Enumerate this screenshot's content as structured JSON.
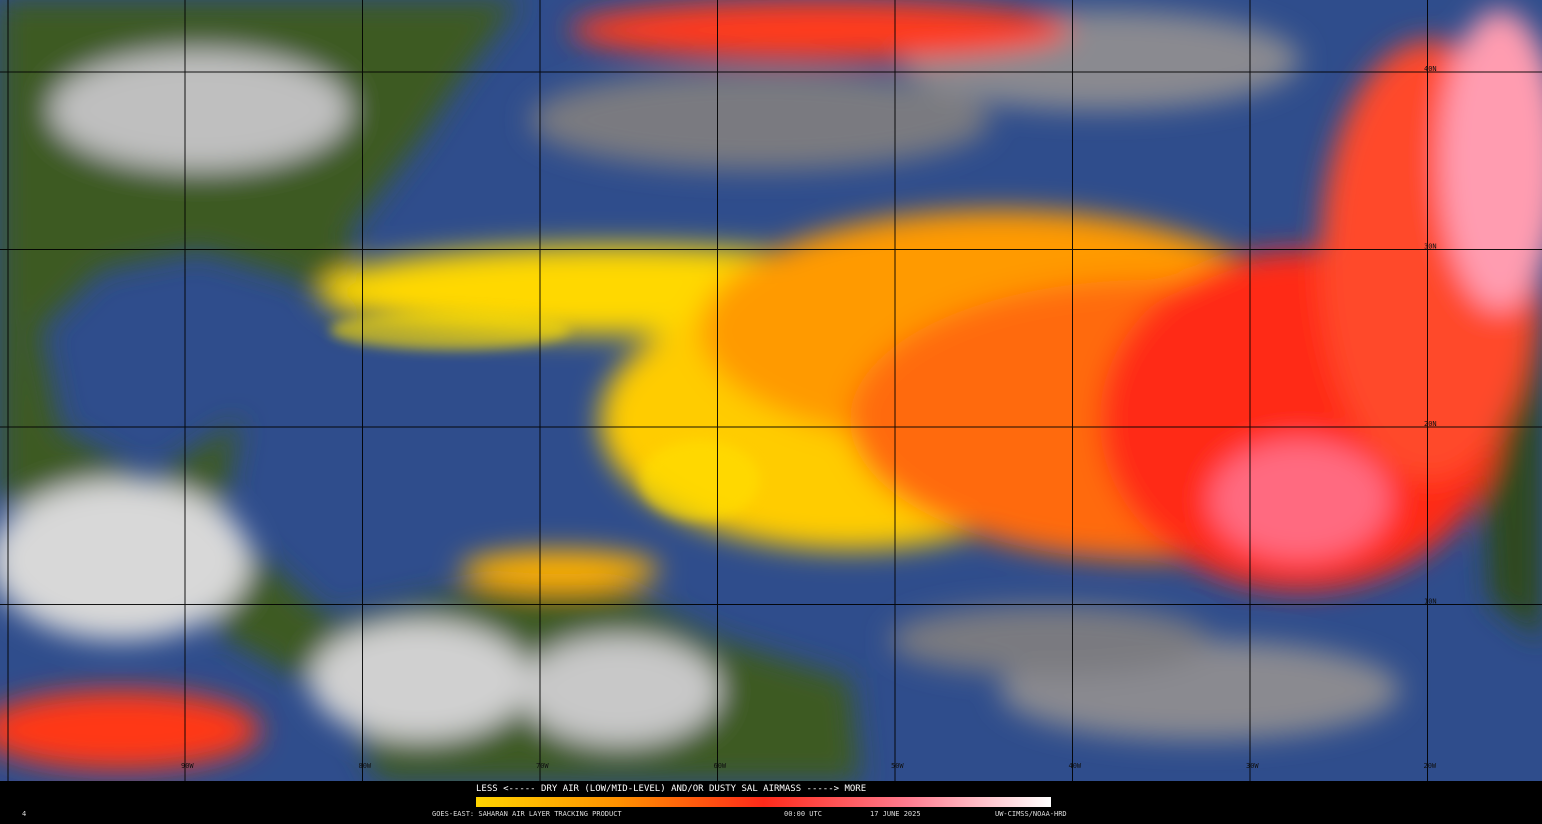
{
  "map": {
    "lat_labels": [
      "40N",
      "30N",
      "20N",
      "10N"
    ],
    "lon_labels": [
      "90W",
      "80W",
      "70W",
      "60W",
      "50W",
      "40W",
      "30W",
      "20W"
    ],
    "legend": "LESS <----- DRY AIR (LOW/MID-LEVEL) AND/OR DUSTY SAL AIRMASS -----> MORE",
    "footer": {
      "corner": "4",
      "product": "GOES-EAST: SAHARAN AIR LAYER TRACKING PRODUCT",
      "time": "00:00 UTC",
      "date": "17 JUNE 2025",
      "credit": "UW-CIMSS/NOAA-HRD"
    }
  }
}
